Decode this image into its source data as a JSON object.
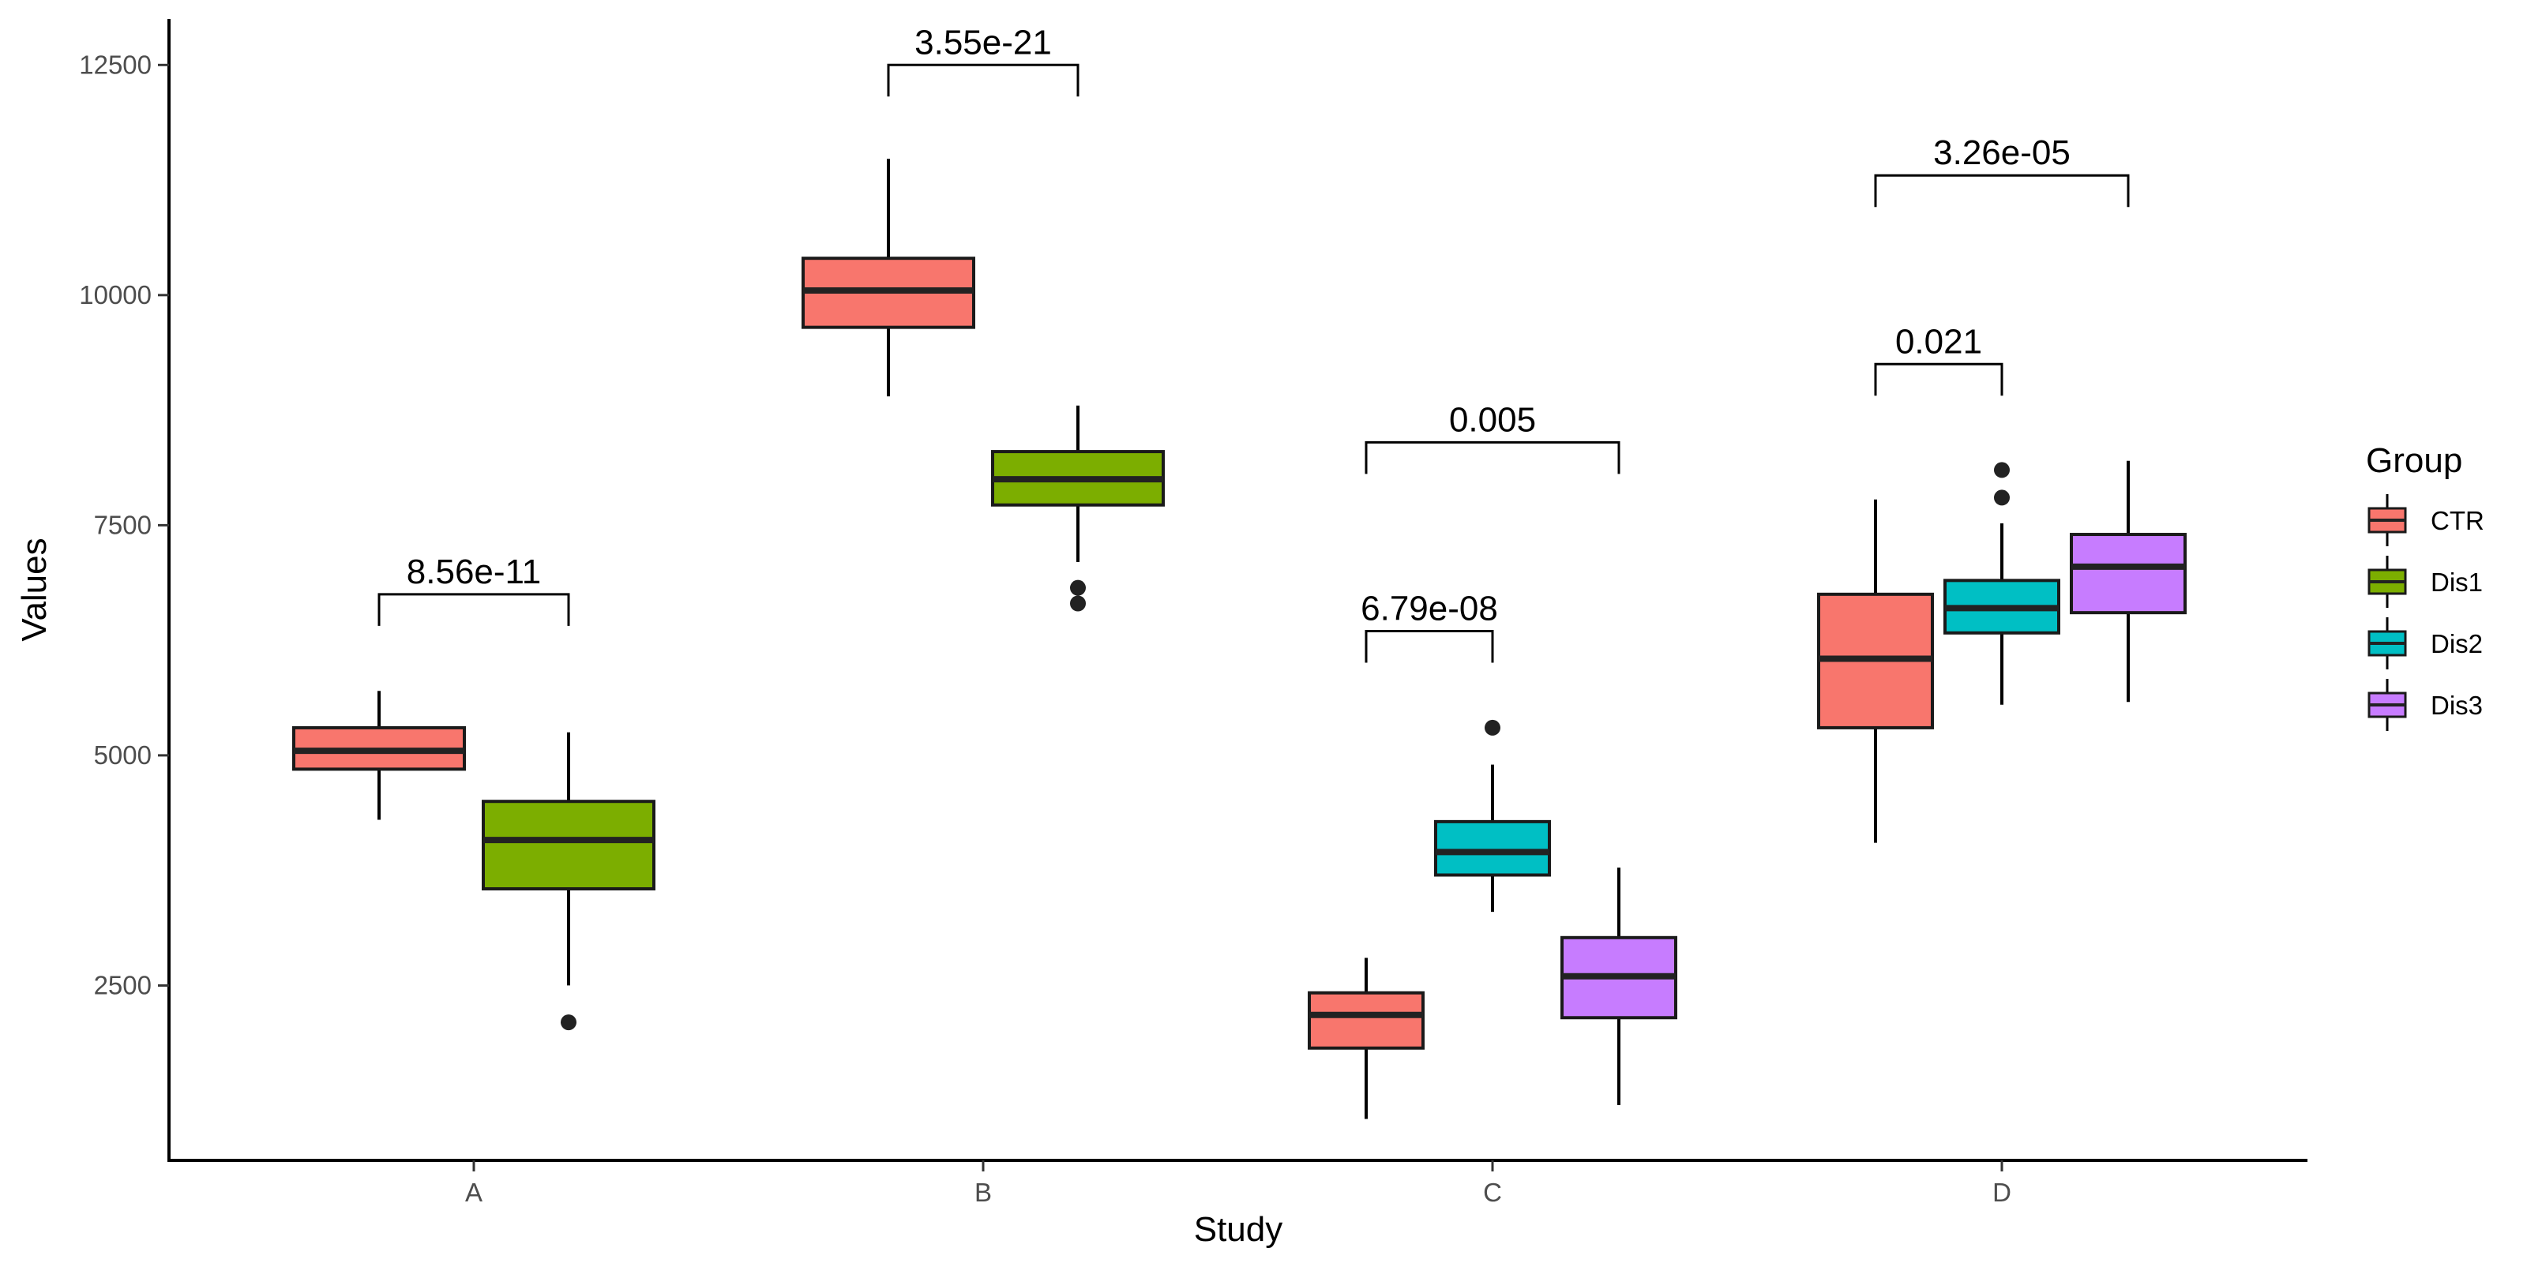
{
  "chart_data": {
    "type": "box",
    "xlabel": "Study",
    "ylabel": "Values",
    "ylim": [
      600,
      13000
    ],
    "y_ticks": [
      2500,
      5000,
      7500,
      10000,
      12500
    ],
    "y_tick_labels": [
      "2500",
      "5000",
      "7500",
      "10000",
      "12500"
    ],
    "categories": [
      "A",
      "B",
      "C",
      "D"
    ],
    "legend": {
      "title": "Group",
      "position": "right",
      "entries": [
        {
          "name": "CTR",
          "color": "#F8766D"
        },
        {
          "name": "Dis1",
          "color": "#7CAE00"
        },
        {
          "name": "Dis2",
          "color": "#00BFC4"
        },
        {
          "name": "Dis3",
          "color": "#C77CFF"
        }
      ]
    },
    "boxes": [
      {
        "study": "A",
        "group": "CTR",
        "slot": 0,
        "n_slots": 2,
        "whisker_low": 4300,
        "q1": 4850,
        "median": 5050,
        "q3": 5300,
        "whisker_high": 5700,
        "outliers": []
      },
      {
        "study": "A",
        "group": "Dis1",
        "slot": 1,
        "n_slots": 2,
        "whisker_low": 2500,
        "q1": 3550,
        "median": 4080,
        "q3": 4500,
        "whisker_high": 5250,
        "outliers": [
          2100
        ]
      },
      {
        "study": "B",
        "group": "CTR",
        "slot": 0,
        "n_slots": 2,
        "whisker_low": 8900,
        "q1": 9650,
        "median": 10050,
        "q3": 10400,
        "whisker_high": 11480,
        "outliers": []
      },
      {
        "study": "B",
        "group": "Dis1",
        "slot": 1,
        "n_slots": 2,
        "whisker_low": 7100,
        "q1": 7720,
        "median": 8000,
        "q3": 8300,
        "whisker_high": 8800,
        "outliers": [
          6820,
          6650
        ]
      },
      {
        "study": "C",
        "group": "CTR",
        "slot": 0,
        "n_slots": 3,
        "whisker_low": 1050,
        "q1": 1820,
        "median": 2180,
        "q3": 2420,
        "whisker_high": 2800,
        "outliers": []
      },
      {
        "study": "C",
        "group": "Dis2",
        "slot": 1,
        "n_slots": 3,
        "whisker_low": 3300,
        "q1": 3700,
        "median": 3950,
        "q3": 4280,
        "whisker_high": 4900,
        "outliers": [
          5300
        ]
      },
      {
        "study": "C",
        "group": "Dis3",
        "slot": 2,
        "n_slots": 3,
        "whisker_low": 1200,
        "q1": 2150,
        "median": 2600,
        "q3": 3020,
        "whisker_high": 3780,
        "outliers": []
      },
      {
        "study": "D",
        "group": "CTR",
        "slot": 0,
        "n_slots": 3,
        "whisker_low": 4050,
        "q1": 5300,
        "median": 6050,
        "q3": 6750,
        "whisker_high": 7780,
        "outliers": []
      },
      {
        "study": "D",
        "group": "Dis2",
        "slot": 1,
        "n_slots": 3,
        "whisker_low": 5550,
        "q1": 6330,
        "median": 6600,
        "q3": 6900,
        "whisker_high": 7520,
        "outliers": [
          8100,
          7800
        ]
      },
      {
        "study": "D",
        "group": "Dis3",
        "slot": 2,
        "n_slots": 3,
        "whisker_low": 5580,
        "q1": 6550,
        "median": 7050,
        "q3": 7400,
        "whisker_high": 8200,
        "outliers": []
      }
    ],
    "annotations": [
      {
        "study": "A",
        "from_slot": 0,
        "to_slot": 1,
        "n_slots": 2,
        "y": 6750,
        "label": "8.56e-11"
      },
      {
        "study": "B",
        "from_slot": 0,
        "to_slot": 1,
        "n_slots": 2,
        "y": 12500,
        "label": "3.55e-21"
      },
      {
        "study": "C",
        "from_slot": 0,
        "to_slot": 2,
        "n_slots": 3,
        "y": 8400,
        "label": "0.005"
      },
      {
        "study": "C",
        "from_slot": 0,
        "to_slot": 1,
        "n_slots": 3,
        "y": 6350,
        "label": "6.79e-08"
      },
      {
        "study": "D",
        "from_slot": 0,
        "to_slot": 2,
        "n_slots": 3,
        "y": 11300,
        "label": "3.26e-05"
      },
      {
        "study": "D",
        "from_slot": 0,
        "to_slot": 1,
        "n_slots": 3,
        "y": 9250,
        "label": "0.021"
      }
    ]
  }
}
